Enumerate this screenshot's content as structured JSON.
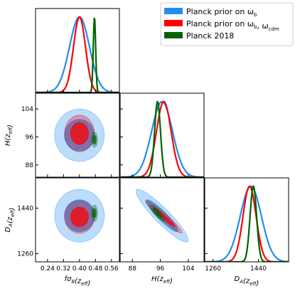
{
  "chart_data": {
    "type": "corner",
    "parameters": [
      {
        "name": "fsigma8",
        "label": "fσ8(z_eff)",
        "ticks": [
          0.24,
          0.32,
          0.4,
          0.48,
          0.56
        ],
        "tick_labels": [
          "0.24",
          "0.32",
          "0.40",
          "0.48",
          "0.56"
        ],
        "range": [
          0.18,
          0.6
        ]
      },
      {
        "name": "H",
        "label": "H(z_eff)",
        "ticks": [
          88,
          96,
          104
        ],
        "tick_labels": [
          "88",
          "96",
          "104"
        ],
        "range": [
          84.5,
          108.5
        ]
      },
      {
        "name": "DA",
        "label": "D_A(z_eff)",
        "ticks": [
          1260,
          1440
        ],
        "tick_labels": [
          "1260",
          "1440"
        ],
        "range": [
          1227,
          1560
        ]
      }
    ],
    "legend": {
      "placement": "top-right",
      "entries": [
        {
          "label": "Planck prior on ω_b",
          "color": "#1f8ef1"
        },
        {
          "label": "Planck prior on ω_b, ω_cdm",
          "color": "#ff0000"
        },
        {
          "label": "Planck 2018",
          "color": "#006400"
        }
      ]
    },
    "series": [
      {
        "name": "Planck prior on ω_b",
        "color": "#1f8ef1",
        "means": {
          "fsigma8": 0.4,
          "H": 96.5,
          "DA": 1410
        },
        "sigmas": {
          "fsigma8": 0.05,
          "H": 3.0,
          "DA": 42
        },
        "correlations": {
          "fsigma8_H": 0.0,
          "fsigma8_DA": 0.0,
          "H_DA": -0.92
        }
      },
      {
        "name": "Planck prior on ω_b, ω_cdm",
        "color": "#ff0000",
        "means": {
          "fsigma8": 0.4,
          "H": 97.0,
          "DA": 1405
        },
        "sigmas": {
          "fsigma8": 0.03,
          "H": 2.1,
          "DA": 26
        },
        "correlations": {
          "fsigma8_H": 0.0,
          "fsigma8_DA": 0.0,
          "H_DA": -0.96
        }
      },
      {
        "name": "Planck 2018",
        "color": "#006400",
        "means": {
          "fsigma8": 0.475,
          "H": 95.2,
          "DA": 1420
        },
        "sigmas": {
          "fsigma8": 0.006,
          "H": 0.85,
          "DA": 13
        },
        "correlations": {
          "fsigma8_H": 0.0,
          "fsigma8_DA": 0.0,
          "H_DA": -0.85
        }
      }
    ]
  }
}
